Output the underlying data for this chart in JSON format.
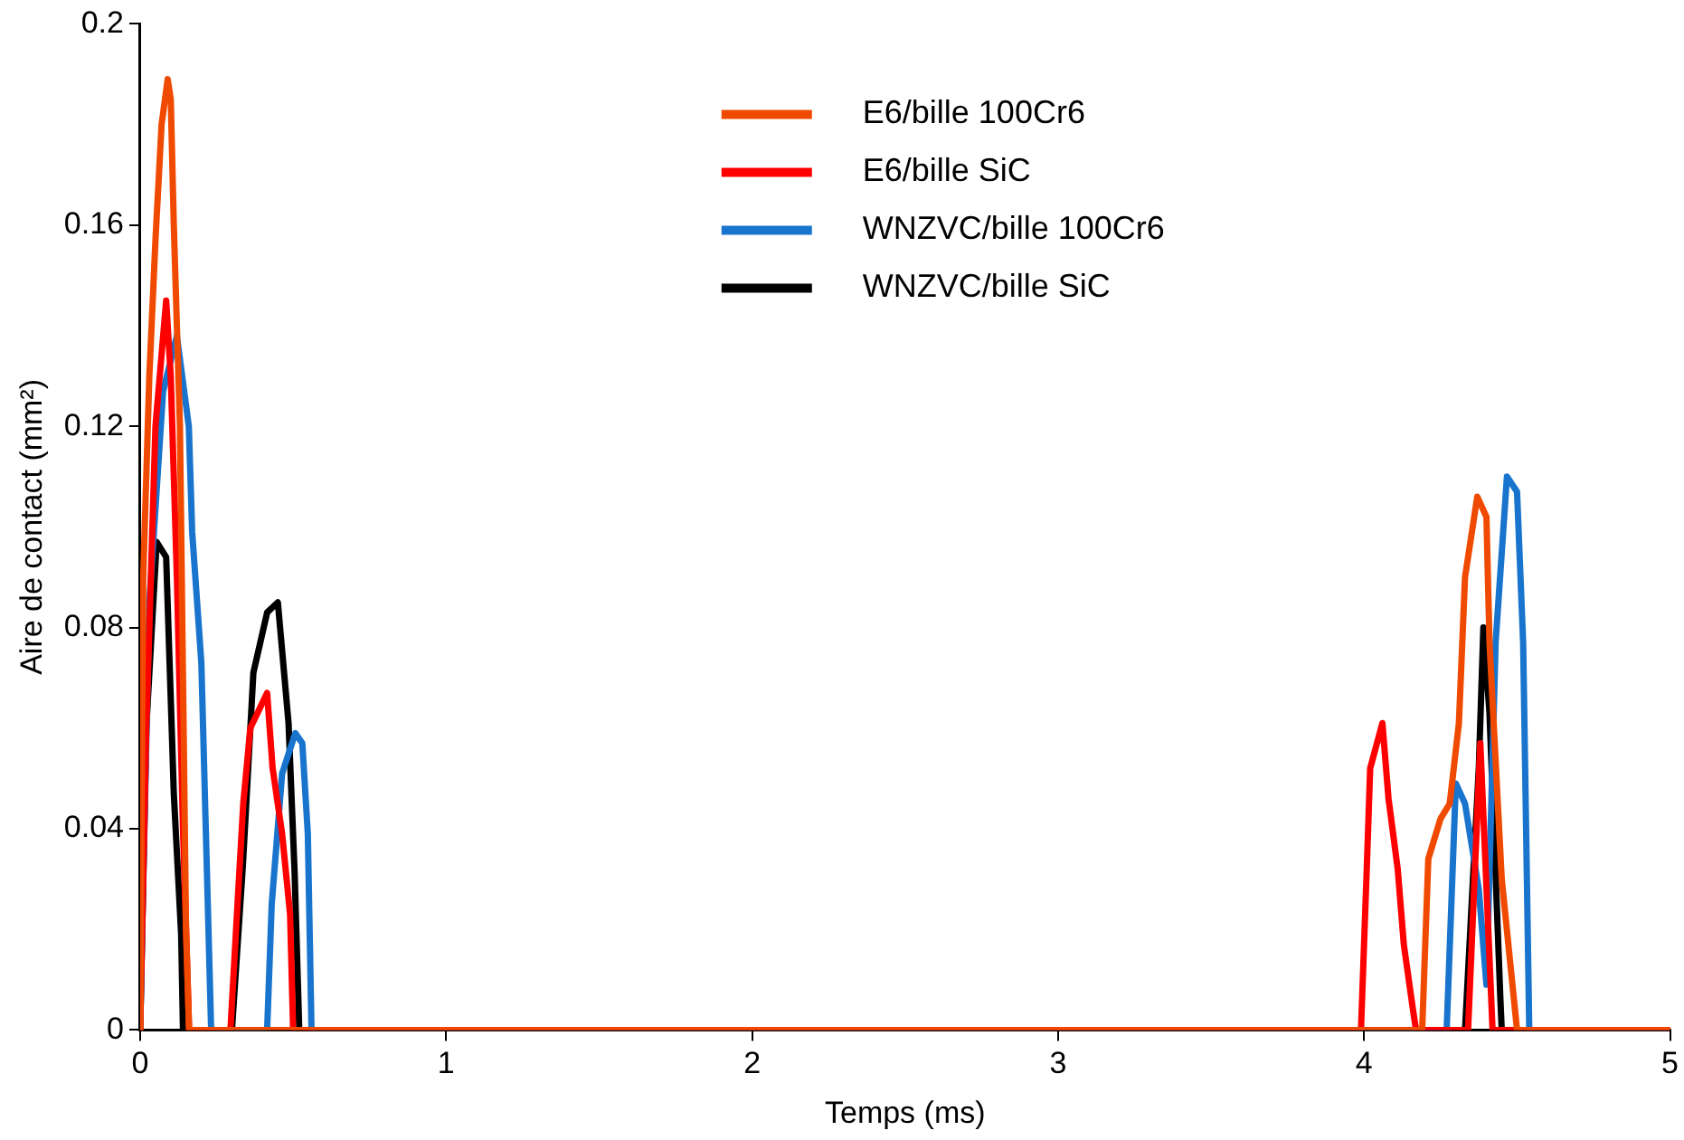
{
  "chart_data": {
    "type": "line",
    "xlabel": "Temps (ms)",
    "ylabel": "Aire de contact (mm²)",
    "xlim": [
      0,
      5
    ],
    "xticks": [
      0,
      1,
      2,
      3,
      4,
      5
    ],
    "ylim": [
      0,
      0.2
    ],
    "yticks": [
      0,
      0.04,
      0.08,
      0.12,
      0.16,
      0.2
    ],
    "grid": false,
    "legend": "top",
    "marker": "none",
    "line_style": "solid",
    "series": [
      {
        "name": "E6/bille 100Cr6",
        "color": "#f04a00",
        "x": [
          0,
          0.01,
          0.03,
          0.05,
          0.07,
          0.09,
          0.1,
          0.11,
          0.13,
          0.14,
          0.15,
          0.16,
          4.19,
          4.21,
          4.25,
          4.28,
          4.31,
          4.33,
          4.37,
          4.4,
          4.41,
          4.45,
          4.5,
          5
        ],
        "values": [
          0,
          0.09,
          0.13,
          0.157,
          0.18,
          0.189,
          0.185,
          0.16,
          0.12,
          0.07,
          0.02,
          0,
          0,
          0.034,
          0.042,
          0.045,
          0.061,
          0.09,
          0.106,
          0.102,
          0.077,
          0.03,
          0,
          0
        ]
      },
      {
        "name": "E6/bille SiC",
        "color": "#ff0000",
        "x": [
          0,
          0.02,
          0.05,
          0.085,
          0.1,
          0.12,
          0.14,
          0.16,
          0.295,
          0.32,
          0.337,
          0.36,
          0.415,
          0.433,
          0.464,
          0.49,
          0.5,
          3.99,
          4.01,
          4.02,
          4.06,
          4.08,
          4.11,
          4.13,
          4.16,
          4.17,
          4.34,
          4.38,
          4.42,
          5
        ],
        "values": [
          0,
          0.06,
          0.12,
          0.145,
          0.13,
          0.09,
          0.04,
          0,
          0,
          0.027,
          0.045,
          0.06,
          0.067,
          0.052,
          0.039,
          0.023,
          0,
          0,
          0.034,
          0.052,
          0.061,
          0.046,
          0.032,
          0.017,
          0.004,
          0,
          0,
          0.057,
          0,
          0
        ]
      },
      {
        "name": "WNZVC/bille 100Cr6",
        "color": "#1874cd",
        "x": [
          0,
          0.03,
          0.075,
          0.12,
          0.159,
          0.17,
          0.2,
          0.232,
          0.415,
          0.43,
          0.464,
          0.507,
          0.53,
          0.548,
          0.56,
          4.27,
          4.3,
          4.33,
          4.375,
          4.4,
          4.43,
          4.467,
          4.5,
          4.52,
          4.54,
          5
        ],
        "values": [
          0,
          0.085,
          0.127,
          0.138,
          0.12,
          0.099,
          0.073,
          0,
          0,
          0.025,
          0.051,
          0.059,
          0.057,
          0.039,
          0,
          0,
          0.049,
          0.045,
          0.028,
          0.009,
          0.077,
          0.11,
          0.107,
          0.077,
          0,
          0
        ]
      },
      {
        "name": "WNZVC/bille SiC",
        "color": "#000000",
        "x": [
          0,
          0.02,
          0.054,
          0.085,
          0.11,
          0.134,
          0.14,
          0.3,
          0.336,
          0.37,
          0.415,
          0.45,
          0.485,
          0.505,
          0.52,
          4.33,
          4.375,
          4.39,
          4.41,
          4.445,
          4.45
        ],
        "values": [
          0,
          0.06,
          0.097,
          0.094,
          0.047,
          0.019,
          0,
          0,
          0.033,
          0.071,
          0.083,
          0.085,
          0.061,
          0.031,
          0,
          0,
          0.052,
          0.08,
          0.063,
          0.007,
          0
        ]
      }
    ]
  }
}
